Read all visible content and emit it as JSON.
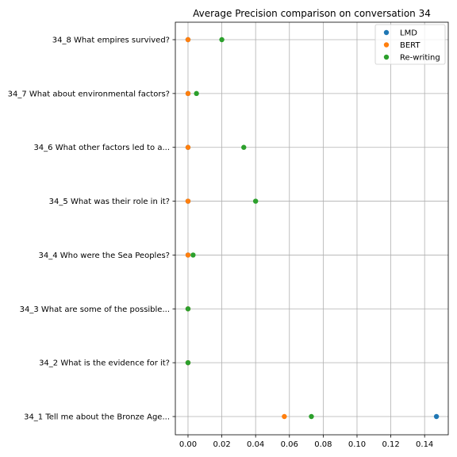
{
  "chart_data": {
    "type": "scatter",
    "title": "Average Precision comparison on conversation 34",
    "xlabel": "",
    "ylabel": "",
    "xlim": [
      -0.0075,
      0.154
    ],
    "x_ticks": [
      0.0,
      0.02,
      0.04,
      0.06,
      0.08,
      0.1,
      0.12,
      0.14
    ],
    "x_tick_labels": [
      "0.00",
      "0.02",
      "0.04",
      "0.06",
      "0.08",
      "0.10",
      "0.12",
      "0.14"
    ],
    "categories": [
      "34_1 Tell me about the Bronze Age...",
      "34_2 What is the evidence for it?",
      "34_3 What are some of the possible...",
      "34_4 Who were the Sea Peoples?",
      "34_5 What was their role in it?",
      "34_6 What other factors led to a...",
      "34_7 What about environmental factors?",
      "34_8 What empires survived?"
    ],
    "series": [
      {
        "name": "LMD",
        "color": "#1f77b4",
        "values": [
          0.147,
          0.0,
          0.0,
          0.0,
          0.0,
          0.0,
          0.0,
          0.0
        ]
      },
      {
        "name": "BERT",
        "color": "#ff7f0e",
        "values": [
          0.057,
          0.0,
          0.0,
          0.0,
          0.0,
          0.0,
          0.0,
          0.0
        ]
      },
      {
        "name": "Re-writing",
        "color": "#2ca02c",
        "values": [
          0.073,
          0.0,
          0.0,
          0.003,
          0.04,
          0.033,
          0.005,
          0.02
        ]
      }
    ],
    "grid": true,
    "legend_position": "top-right"
  }
}
